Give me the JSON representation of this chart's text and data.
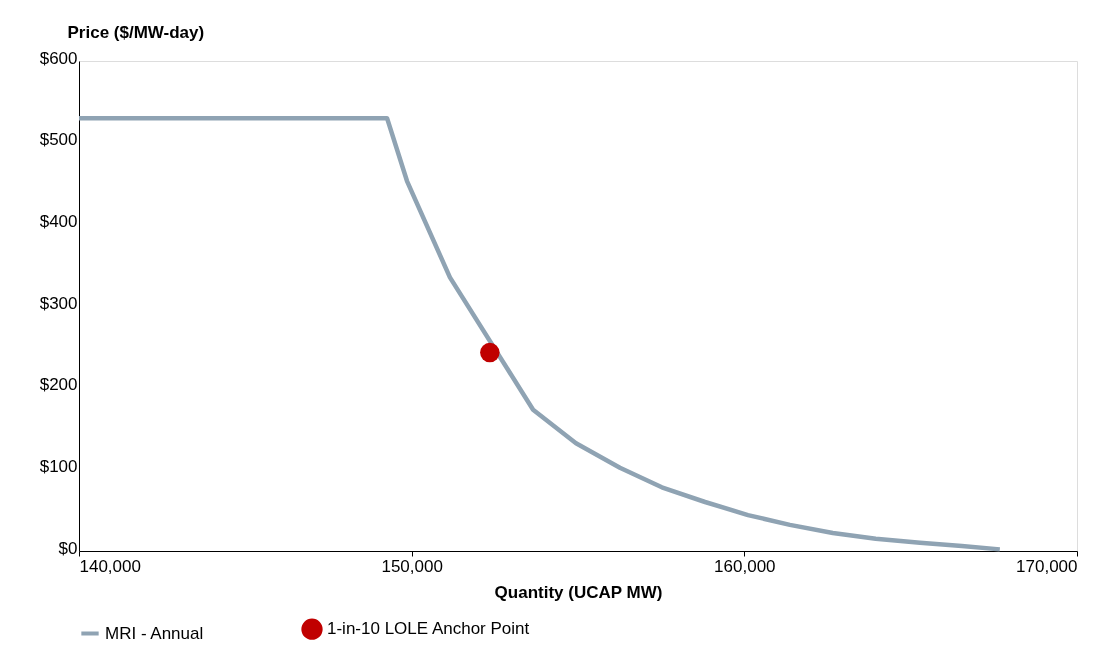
{
  "chart_data": {
    "type": "line",
    "xlabel": "Quantity (UCAP MW)",
    "ylabel": "Price ($/MW-day)",
    "xlim": [
      140000,
      170000
    ],
    "xticks": [
      {
        "value": 140000,
        "label": "140,000"
      },
      {
        "value": 150000,
        "label": "150,000"
      },
      {
        "value": 160000,
        "label": "160,000"
      },
      {
        "value": 170000,
        "label": "170,000"
      }
    ],
    "ylim": [
      0,
      600
    ],
    "yticks": [
      {
        "value": 0,
        "label": "$0"
      },
      {
        "value": 100,
        "label": "$100"
      },
      {
        "value": 200,
        "label": "$200"
      },
      {
        "value": 300,
        "label": "$300"
      },
      {
        "value": 400,
        "label": "$400"
      },
      {
        "value": 500,
        "label": "$500"
      },
      {
        "value": 600,
        "label": "$600"
      }
    ],
    "legend": "bottom",
    "grid": false,
    "series": [
      {
        "name": "MRI - Annual",
        "color": "#8fa3b3",
        "line_style": "solid",
        "x": [
          140000,
          149260,
          149860,
          151150,
          153650,
          154940,
          156260,
          157520,
          158820,
          160110,
          161370,
          162660,
          163950,
          165280,
          166540,
          167680
        ],
        "values": [
          530,
          530,
          453,
          335,
          173,
          132,
          102,
          78,
          60,
          44,
          32,
          22,
          15,
          10,
          6,
          2
        ]
      },
      {
        "name": "1-in-10 LOLE Anchor Point",
        "type": "scatter",
        "color": "#c00000",
        "marker": "circle",
        "x": [
          152350
        ],
        "values": [
          243
        ]
      }
    ]
  }
}
